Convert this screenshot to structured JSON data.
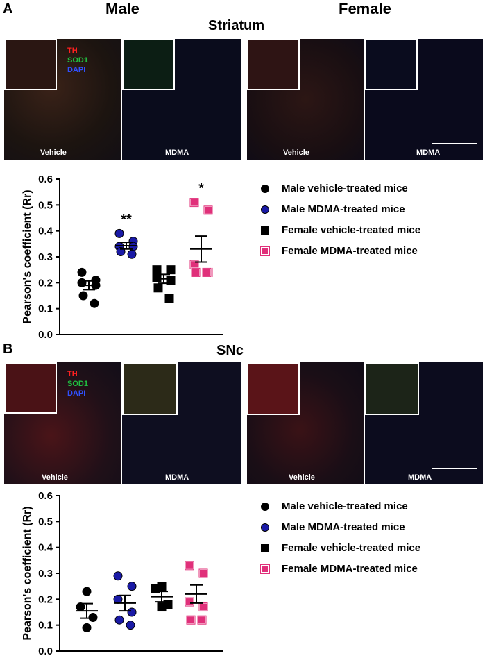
{
  "panel_a": {
    "letter": "A",
    "male_title": "Male",
    "female_title": "Female",
    "region_title": "Striatum",
    "stains": {
      "th": "TH",
      "sod1": "SOD1",
      "dapi": "DAPI"
    },
    "image_labels": [
      "Vehicle",
      "MDMA",
      "Vehicle",
      "MDMA"
    ],
    "significance": [
      "**",
      "*"
    ]
  },
  "panel_b": {
    "letter": "B",
    "region_title": "SNc",
    "stains": {
      "th": "TH",
      "sod1": "SOD1",
      "dapi": "DAPI"
    },
    "image_labels": [
      "Vehicle",
      "MDMA",
      "Vehicle",
      "MDMA"
    ]
  },
  "legend": [
    {
      "label": "Male vehicle-treated mice",
      "color": "#000000",
      "shape": "circle"
    },
    {
      "label": "Male MDMA-treated mice",
      "color": "#1a1aa6",
      "shape": "circle"
    },
    {
      "label": "Female vehicle-treated mice",
      "color": "#000000",
      "shape": "square"
    },
    {
      "label": "Female MDMA-treated mice",
      "color": "#e0307a",
      "shape": "square"
    }
  ],
  "chart_data": [
    {
      "type": "scatter",
      "panel": "A",
      "ylabel": "Pearson's coefficient (Rr)",
      "ylim": [
        0.0,
        0.6
      ],
      "yticks": [
        "0.0",
        "0.1",
        "0.2",
        "0.3",
        "0.4",
        "0.5",
        "0.6"
      ],
      "series": [
        {
          "name": "Male vehicle-treated mice",
          "values": [
            0.24,
            0.21,
            0.2,
            0.19,
            0.15,
            0.12
          ],
          "mean": 0.19,
          "sem": 0.017,
          "color": "#000000",
          "shape": "circle",
          "annotation": ""
        },
        {
          "name": "Male MDMA-treated mice",
          "values": [
            0.39,
            0.36,
            0.34,
            0.34,
            0.32,
            0.31
          ],
          "mean": 0.343,
          "sem": 0.013,
          "color": "#1a1aa6",
          "shape": "circle",
          "annotation": "**"
        },
        {
          "name": "Female vehicle-treated mice",
          "values": [
            0.25,
            0.25,
            0.22,
            0.21,
            0.18,
            0.14
          ],
          "mean": 0.215,
          "sem": 0.017,
          "color": "#000000",
          "shape": "square",
          "annotation": ""
        },
        {
          "name": "Female MDMA-treated mice",
          "values": [
            0.51,
            0.48,
            0.27,
            0.24,
            0.24,
            0.24
          ],
          "mean": 0.33,
          "sem": 0.05,
          "color": "#e0307a",
          "shape": "square",
          "annotation": "*"
        }
      ]
    },
    {
      "type": "scatter",
      "panel": "B",
      "ylabel": "Pearson's coefficient (Rr)",
      "ylim": [
        0.0,
        0.6
      ],
      "yticks": [
        "0.0",
        "0.1",
        "0.2",
        "0.3",
        "0.4",
        "0.5",
        "0.6"
      ],
      "series": [
        {
          "name": "Male vehicle-treated mice",
          "values": [
            0.23,
            0.17,
            0.13,
            0.09
          ],
          "mean": 0.155,
          "sem": 0.028,
          "color": "#000000",
          "shape": "circle",
          "annotation": ""
        },
        {
          "name": "Male MDMA-treated mice",
          "values": [
            0.29,
            0.25,
            0.2,
            0.15,
            0.12,
            0.1
          ],
          "mean": 0.185,
          "sem": 0.03,
          "color": "#1a1aa6",
          "shape": "circle",
          "annotation": ""
        },
        {
          "name": "Female vehicle-treated mice",
          "values": [
            0.25,
            0.24,
            0.18,
            0.17
          ],
          "mean": 0.21,
          "sem": 0.02,
          "color": "#000000",
          "shape": "square",
          "annotation": ""
        },
        {
          "name": "Female MDMA-treated mice",
          "values": [
            0.33,
            0.3,
            0.19,
            0.17,
            0.12,
            0.12
          ],
          "mean": 0.22,
          "sem": 0.035,
          "color": "#e0307a",
          "shape": "square",
          "annotation": ""
        }
      ]
    }
  ]
}
